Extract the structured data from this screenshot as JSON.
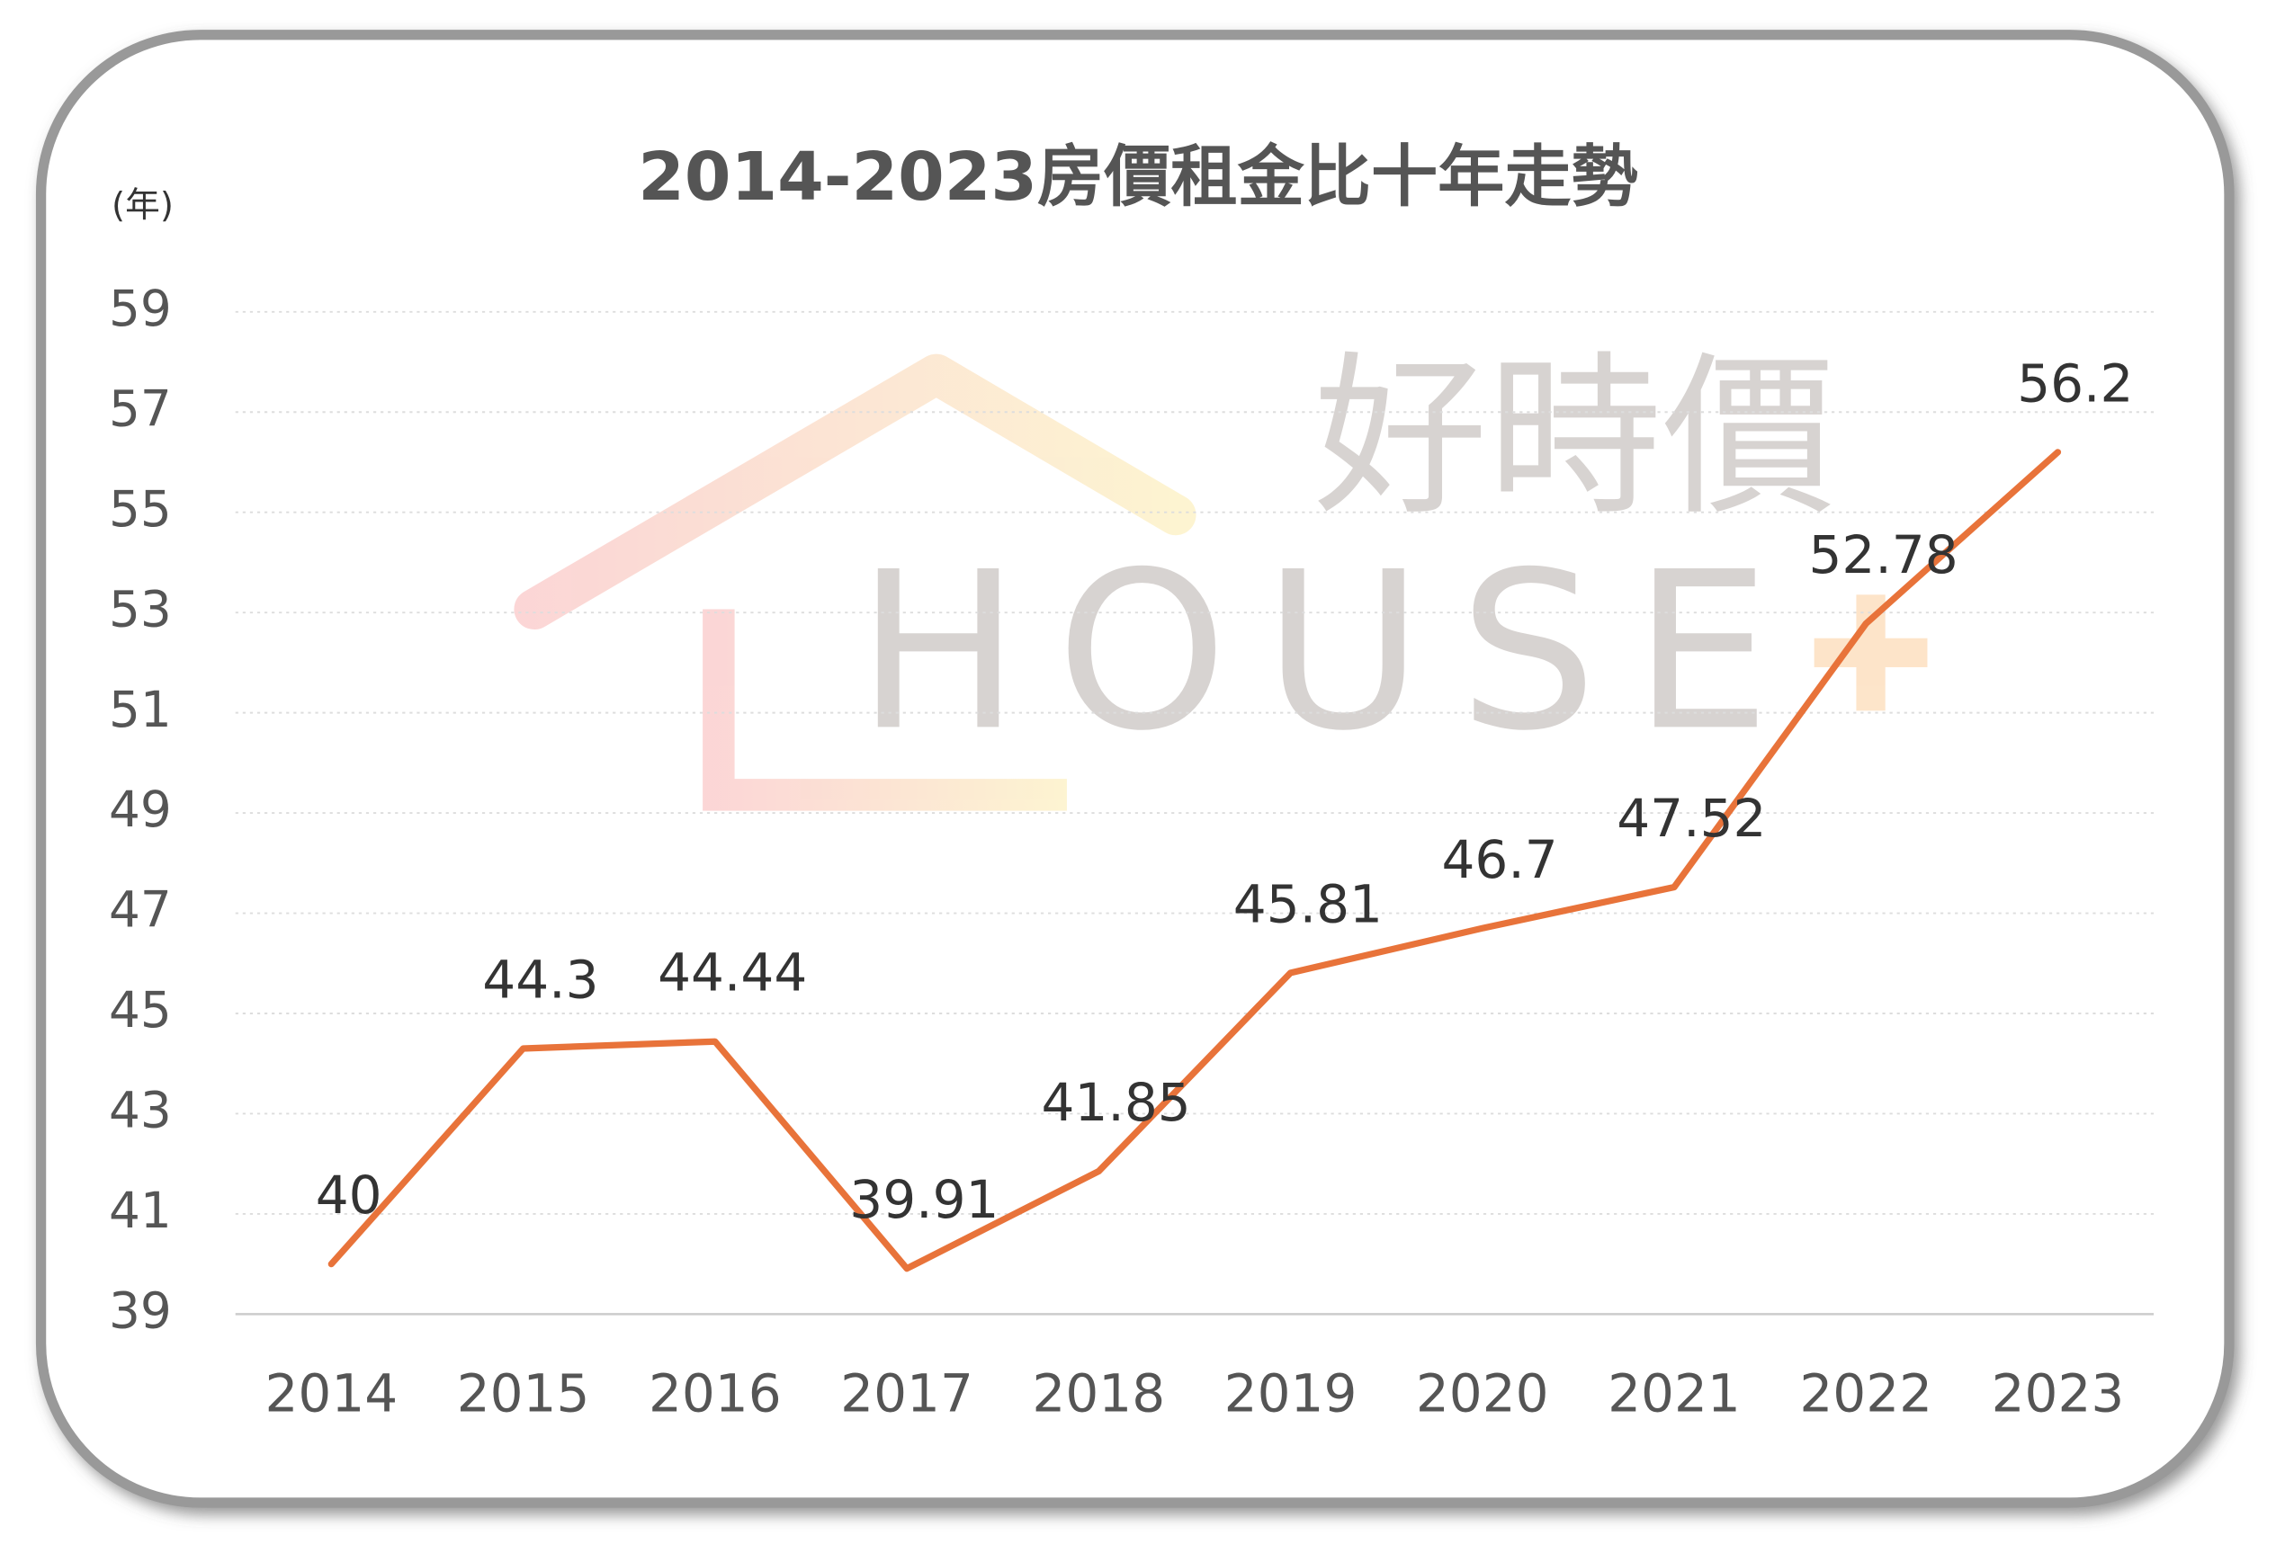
{
  "chart_data": {
    "type": "line",
    "title": "2014-2023房價租金比十年走勢",
    "y_label": "(年)",
    "categories": [
      "2014",
      "2015",
      "2016",
      "2017",
      "2018",
      "2019",
      "2020",
      "2021",
      "2022",
      "2023"
    ],
    "series": [
      {
        "name": "房價租金比",
        "color": "#e8733a",
        "values": [
          40,
          44.3,
          44.44,
          39.91,
          41.85,
          45.81,
          46.7,
          47.52,
          52.78,
          56.2
        ]
      }
    ],
    "ylim": [
      39,
      59
    ],
    "yticks": [
      39,
      41,
      43,
      45,
      47,
      49,
      51,
      53,
      55,
      57,
      59
    ],
    "grid": true,
    "watermark": {
      "brand": "好時價",
      "logo": "HOUSE"
    }
  }
}
